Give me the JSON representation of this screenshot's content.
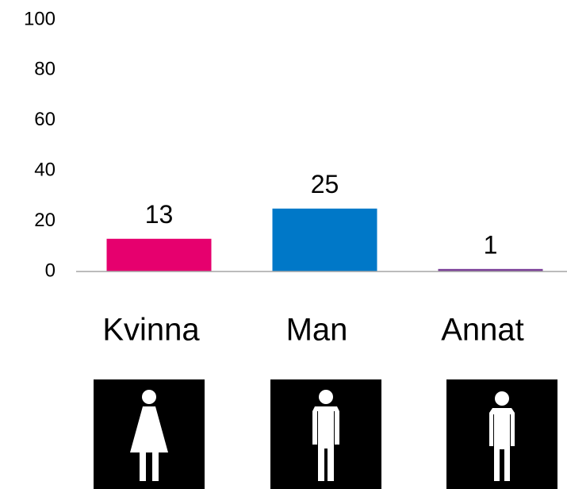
{
  "chart_data": {
    "type": "bar",
    "categories": [
      "Kvinna",
      "Man",
      "Annat"
    ],
    "values": [
      13,
      25,
      1
    ],
    "colors": [
      "#e6006e",
      "#0078c8",
      "#7b3f98"
    ],
    "ylim": [
      0,
      100
    ],
    "yticks": [
      0,
      20,
      40,
      60,
      80,
      100
    ],
    "grid": false
  }
}
